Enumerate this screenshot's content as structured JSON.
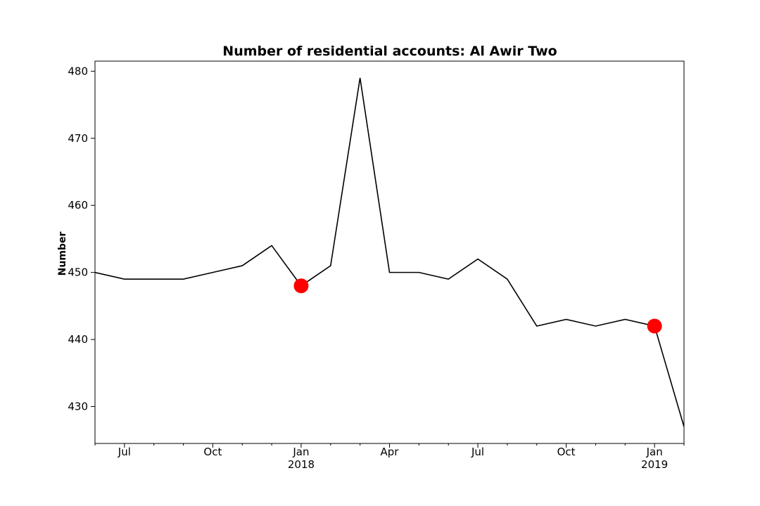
{
  "chart_data": {
    "type": "line",
    "title": "Number of residential accounts: Al Awir Two",
    "xlabel": "",
    "ylabel": "Number",
    "xlim": [
      "2017-06",
      "2019-02"
    ],
    "ylim": [
      424.5,
      481.5
    ],
    "grid": false,
    "x": [
      "2017-06",
      "2017-07",
      "2017-08",
      "2017-09",
      "2017-10",
      "2017-11",
      "2017-12",
      "2018-01",
      "2018-02",
      "2018-03",
      "2018-04",
      "2018-05",
      "2018-06",
      "2018-07",
      "2018-08",
      "2018-09",
      "2018-10",
      "2018-11",
      "2018-12",
      "2019-01",
      "2019-02"
    ],
    "series": [
      {
        "color": "#000000",
        "values": [
          450,
          449,
          449,
          449,
          450,
          451,
          454,
          448,
          451,
          479,
          450,
          450,
          449,
          452,
          449,
          442,
          443,
          442,
          443,
          442,
          427
        ]
      }
    ],
    "highlighted_points": {
      "color": "#ff0000",
      "points": [
        {
          "x": "2018-01",
          "y": 448
        },
        {
          "x": "2019-01",
          "y": 442
        }
      ]
    },
    "y_ticks": [
      "430",
      "440",
      "450",
      "460",
      "470",
      "480"
    ],
    "x_ticks": [
      {
        "x": "2017-07",
        "label": "Jul",
        "sublabel": ""
      },
      {
        "x": "2017-10",
        "label": "Oct",
        "sublabel": ""
      },
      {
        "x": "2018-01",
        "label": "Jan",
        "sublabel": "2018"
      },
      {
        "x": "2018-04",
        "label": "Apr",
        "sublabel": ""
      },
      {
        "x": "2018-07",
        "label": "Jul",
        "sublabel": ""
      },
      {
        "x": "2018-10",
        "label": "Oct",
        "sublabel": ""
      },
      {
        "x": "2019-01",
        "label": "Jan",
        "sublabel": "2019"
      }
    ]
  }
}
